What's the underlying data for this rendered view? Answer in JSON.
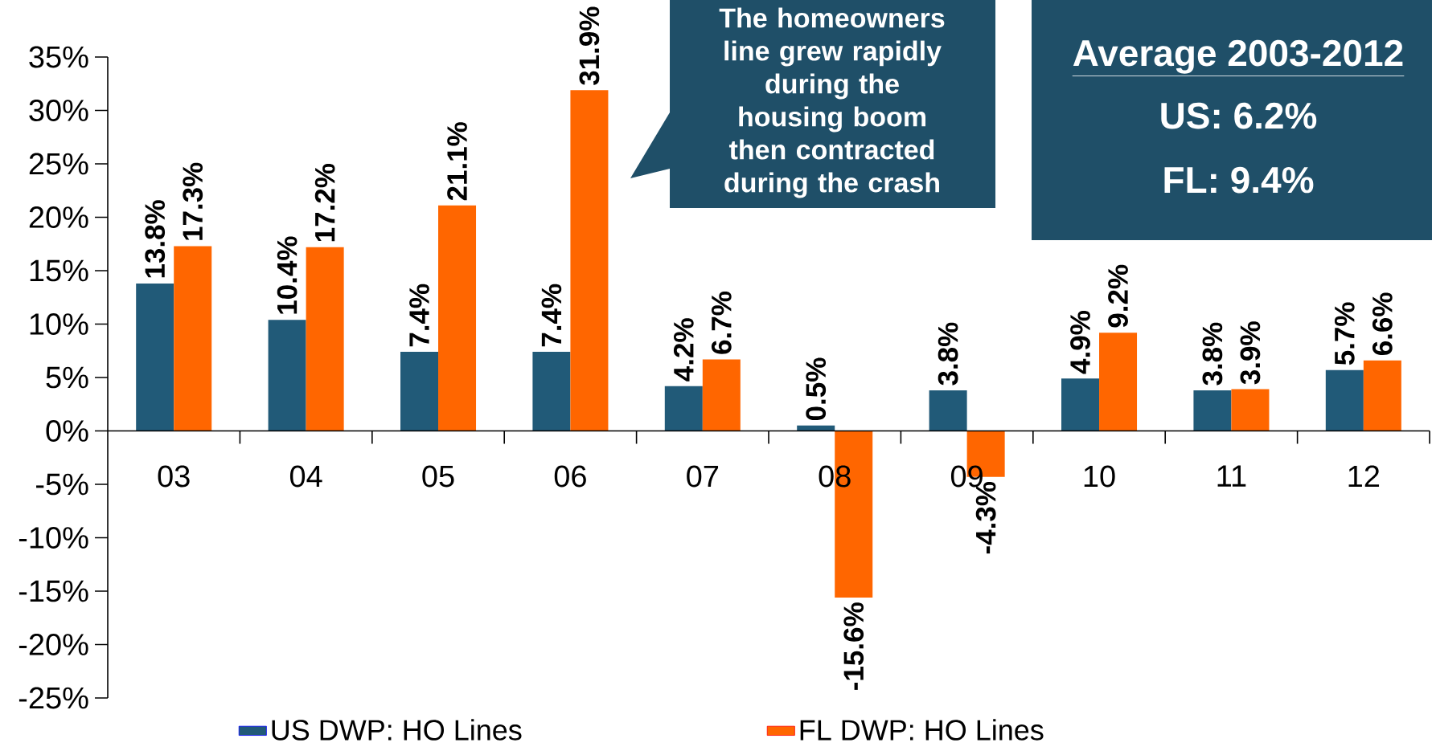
{
  "chart_data": {
    "type": "bar",
    "categories": [
      "03",
      "04",
      "05",
      "06",
      "07",
      "08",
      "09",
      "10",
      "11",
      "12"
    ],
    "series": [
      {
        "name": "US DWP: HO Lines",
        "color": "#215a78",
        "values": [
          13.8,
          10.4,
          7.4,
          7.4,
          4.2,
          0.5,
          3.8,
          4.9,
          3.8,
          5.7
        ],
        "value_labels": [
          "13.8%",
          "10.4%",
          "7.4%",
          "7.4%",
          "4.2%",
          "0.5%",
          "3.8%",
          "4.9%",
          "3.8%",
          "5.7%"
        ]
      },
      {
        "name": "FL DWP:  HO Lines",
        "color": "#ff6600",
        "values": [
          17.3,
          17.2,
          21.1,
          31.9,
          6.7,
          -15.6,
          -4.3,
          9.2,
          3.9,
          6.6
        ],
        "value_labels": [
          "17.3%",
          "17.2%",
          "21.1%",
          "31.9%",
          "6.7%",
          "-15.6%",
          "-4.3%",
          "9.2%",
          "3.9%",
          "6.6%"
        ]
      }
    ],
    "ylim": [
      -25,
      35
    ],
    "yticks": [
      {
        "value": -25,
        "label": "-25%"
      },
      {
        "value": -20,
        "label": "-20%"
      },
      {
        "value": -15,
        "label": "-15%"
      },
      {
        "value": -10,
        "label": "-10%"
      },
      {
        "value": -5,
        "label": "-5%"
      },
      {
        "value": 0,
        "label": "0%"
      },
      {
        "value": 5,
        "label": "5%"
      },
      {
        "value": 10,
        "label": "10%"
      },
      {
        "value": 15,
        "label": "15%"
      },
      {
        "value": 20,
        "label": "20%"
      },
      {
        "value": 25,
        "label": "25%"
      },
      {
        "value": 30,
        "label": "30%"
      },
      {
        "value": 35,
        "label": "35%"
      }
    ],
    "legend": "bottom",
    "annotations": [
      "The homeowners line grew rapidly during the housing boom then contracted during the crash",
      "Average 2003-2012",
      "US: 6.2%",
      "FL: 9.4%"
    ]
  }
}
